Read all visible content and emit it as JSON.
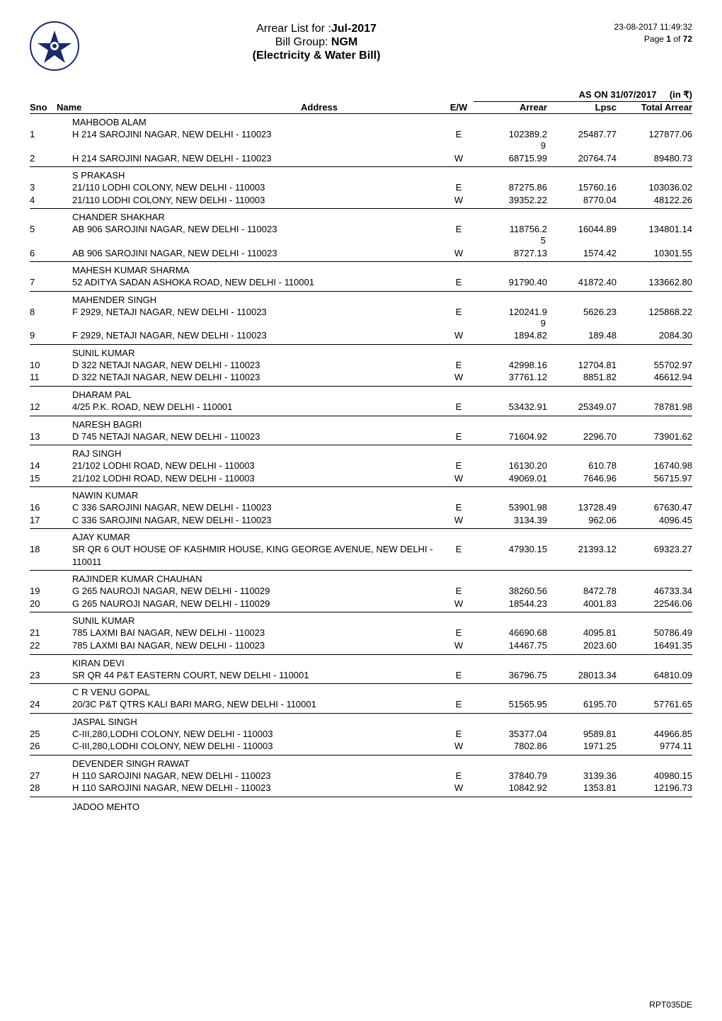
{
  "meta": {
    "title_prefix": "Arrear List for :",
    "period": "Jul-2017",
    "bill_group_label": "Bill Group: ",
    "bill_group_value": "NGM",
    "subtitle": "(Electricity & Water Bill)",
    "timestamp": "23-08-2017 11:49:32",
    "page_label": "Page ",
    "page_current": "1",
    "page_of": " of ",
    "page_total": "72",
    "as_of_label": "AS ON 31/07/2017",
    "currency_label": "(in ₹)",
    "report_id": "RPT035DE"
  },
  "columns": {
    "sno": "Sno",
    "name": "Name",
    "address": "Address",
    "ew": "E/W",
    "arrear": "Arrear",
    "lpsc": "Lpsc",
    "total": "Total Arrear"
  },
  "groups": [
    {
      "name": "MAHBOOB ALAM",
      "rows": [
        {
          "sno": "1",
          "address": "H 214 SAROJINI NAGAR, NEW DELHI - 110023",
          "ew": "E",
          "arrear": "102389.2",
          "arrear_overflow": "9",
          "lpsc": "25487.77",
          "total": "127877.06"
        },
        {
          "sno": "2",
          "address": "H 214 SAROJINI NAGAR, NEW DELHI - 110023",
          "ew": "W",
          "arrear": "68715.99",
          "lpsc": "20764.74",
          "total": "89480.73"
        }
      ]
    },
    {
      "name": "S PRAKASH",
      "rows": [
        {
          "sno": "3",
          "address": "21/110 LODHI COLONY, NEW DELHI - 110003",
          "ew": "E",
          "arrear": "87275.86",
          "lpsc": "15760.16",
          "total": "103036.02"
        },
        {
          "sno": "4",
          "address": "21/110 LODHI COLONY, NEW DELHI - 110003",
          "ew": "W",
          "arrear": "39352.22",
          "lpsc": "8770.04",
          "total": "48122.26"
        }
      ]
    },
    {
      "name": "CHANDER SHAKHAR",
      "rows": [
        {
          "sno": "5",
          "address": "AB 906 SAROJINI NAGAR, NEW DELHI - 110023",
          "ew": "E",
          "arrear": "118756.2",
          "arrear_overflow": "5",
          "lpsc": "16044.89",
          "total": "134801.14"
        },
        {
          "sno": "6",
          "address": "AB 906 SAROJINI NAGAR, NEW DELHI - 110023",
          "ew": "W",
          "arrear": "8727.13",
          "lpsc": "1574.42",
          "total": "10301.55"
        }
      ]
    },
    {
      "name": "MAHESH KUMAR SHARMA",
      "rows": [
        {
          "sno": "7",
          "address": "52 ADITYA SADAN ASHOKA ROAD, NEW DELHI - 110001",
          "ew": "E",
          "arrear": "91790.40",
          "lpsc": "41872.40",
          "total": "133662.80"
        }
      ]
    },
    {
      "name": "MAHENDER SINGH",
      "rows": [
        {
          "sno": "8",
          "address": "F 2929, NETAJI NAGAR, NEW DELHI - 110023",
          "ew": "E",
          "arrear": "120241.9",
          "arrear_overflow": "9",
          "lpsc": "5626.23",
          "total": "125868.22"
        },
        {
          "sno": "9",
          "address": "F 2929, NETAJI NAGAR, NEW DELHI - 110023",
          "ew": "W",
          "arrear": "1894.82",
          "lpsc": "189.48",
          "total": "2084.30"
        }
      ]
    },
    {
      "name": "SUNIL KUMAR",
      "rows": [
        {
          "sno": "10",
          "address": "D 322 NETAJI NAGAR, NEW DELHI - 110023",
          "ew": "E",
          "arrear": "42998.16",
          "lpsc": "12704.81",
          "total": "55702.97"
        },
        {
          "sno": "11",
          "address": "D 322 NETAJI NAGAR, NEW DELHI - 110023",
          "ew": "W",
          "arrear": "37761.12",
          "lpsc": "8851.82",
          "total": "46612.94"
        }
      ]
    },
    {
      "name": "DHARAM PAL",
      "rows": [
        {
          "sno": "12",
          "address": "4/25 P.K. ROAD, NEW DELHI - 110001",
          "ew": "E",
          "arrear": "53432.91",
          "lpsc": "25349.07",
          "total": "78781.98"
        }
      ]
    },
    {
      "name": "NARESH BAGRI",
      "rows": [
        {
          "sno": "13",
          "address": "D 745 NETAJI NAGAR, NEW DELHI - 110023",
          "ew": "E",
          "arrear": "71604.92",
          "lpsc": "2296.70",
          "total": "73901.62"
        }
      ]
    },
    {
      "name": "RAJ SINGH",
      "rows": [
        {
          "sno": "14",
          "address": "21/102 LODHI ROAD, NEW DELHI - 110003",
          "ew": "E",
          "arrear": "16130.20",
          "lpsc": "610.78",
          "total": "16740.98"
        },
        {
          "sno": "15",
          "address": "21/102 LODHI ROAD, NEW DELHI - 110003",
          "ew": "W",
          "arrear": "49069.01",
          "lpsc": "7646.96",
          "total": "56715.97"
        }
      ]
    },
    {
      "name": "NAWIN KUMAR",
      "rows": [
        {
          "sno": "16",
          "address": "C 336 SAROJINI NAGAR, NEW DELHI - 110023",
          "ew": "E",
          "arrear": "53901.98",
          "lpsc": "13728.49",
          "total": "67630.47"
        },
        {
          "sno": "17",
          "address": "C 336 SAROJINI NAGAR, NEW DELHI - 110023",
          "ew": "W",
          "arrear": "3134.39",
          "lpsc": "962.06",
          "total": "4096.45"
        }
      ]
    },
    {
      "name": "AJAY KUMAR",
      "rows": [
        {
          "sno": "18",
          "address": "SR QR 6 OUT HOUSE OF KASHMIR HOUSE, KING GEORGE AVENUE, NEW DELHI - 110011",
          "ew": "E",
          "arrear": "47930.15",
          "lpsc": "21393.12",
          "total": "69323.27"
        }
      ]
    },
    {
      "name": "RAJINDER KUMAR CHAUHAN",
      "rows": [
        {
          "sno": "19",
          "address": "G 265 NAUROJI NAGAR, NEW DELHI - 110029",
          "ew": "E",
          "arrear": "38260.56",
          "lpsc": "8472.78",
          "total": "46733.34"
        },
        {
          "sno": "20",
          "address": "G 265 NAUROJI NAGAR, NEW DELHI - 110029",
          "ew": "W",
          "arrear": "18544.23",
          "lpsc": "4001.83",
          "total": "22546.06"
        }
      ]
    },
    {
      "name": "SUNIL KUMAR",
      "rows": [
        {
          "sno": "21",
          "address": "785 LAXMI BAI NAGAR, NEW DELHI - 110023",
          "ew": "E",
          "arrear": "46690.68",
          "lpsc": "4095.81",
          "total": "50786.49"
        },
        {
          "sno": "22",
          "address": "785 LAXMI BAI NAGAR, NEW DELHI - 110023",
          "ew": "W",
          "arrear": "14467.75",
          "lpsc": "2023.60",
          "total": "16491.35"
        }
      ]
    },
    {
      "name": "KIRAN DEVI",
      "rows": [
        {
          "sno": "23",
          "address": "SR QR 44 P&T EASTERN COURT, NEW DELHI - 110001",
          "ew": "E",
          "arrear": "36796.75",
          "lpsc": "28013.34",
          "total": "64810.09"
        }
      ]
    },
    {
      "name": "C R VENU GOPAL",
      "rows": [
        {
          "sno": "24",
          "address": "20/3C P&T QTRS KALI BARI MARG, NEW DELHI - 110001",
          "ew": "E",
          "arrear": "51565.95",
          "lpsc": "6195.70",
          "total": "57761.65"
        }
      ]
    },
    {
      "name": "JASPAL SINGH",
      "rows": [
        {
          "sno": "25",
          "address": "C-III,280,LODHI COLONY, NEW DELHI - 110003",
          "ew": "E",
          "arrear": "35377.04",
          "lpsc": "9589.81",
          "total": "44966.85"
        },
        {
          "sno": "26",
          "address": "C-III,280,LODHI COLONY, NEW DELHI - 110003",
          "ew": "W",
          "arrear": "7802.86",
          "lpsc": "1971.25",
          "total": "9774.11"
        }
      ]
    },
    {
      "name": "DEVENDER SINGH RAWAT",
      "rows": [
        {
          "sno": "27",
          "address": "H 110 SAROJINI NAGAR, NEW DELHI - 110023",
          "ew": "E",
          "arrear": "37840.79",
          "lpsc": "3139.36",
          "total": "40980.15"
        },
        {
          "sno": "28",
          "address": "H 110 SAROJINI NAGAR, NEW DELHI - 110023",
          "ew": "W",
          "arrear": "10842.92",
          "lpsc": "1353.81",
          "total": "12196.73"
        }
      ]
    }
  ],
  "footer_name": "JADOO MEHTO"
}
